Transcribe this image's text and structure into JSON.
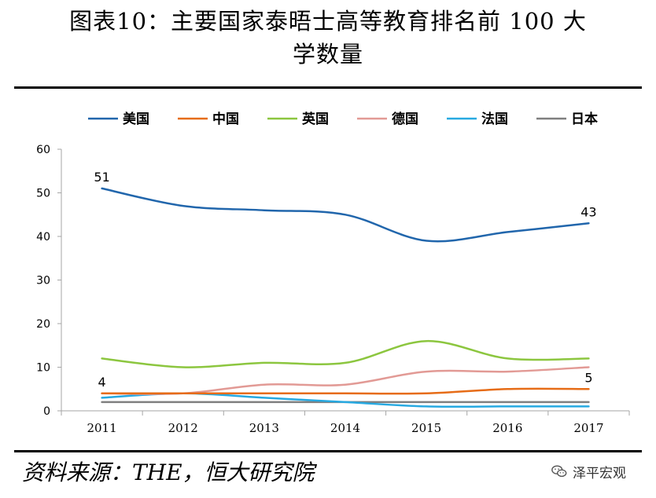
{
  "title": {
    "line1": "图表10：主要国家泰晤士高等教育排名前 100 大",
    "line2": "学数量"
  },
  "source": "资料来源：THE，恒大研究院",
  "watermark": {
    "text": "泽平宏观",
    "icon": "wechat-icon"
  },
  "chart_data": {
    "type": "line",
    "title": "主要国家泰晤士高等教育排名前 100 大学数量",
    "xlabel": "",
    "ylabel": "",
    "x": [
      "2011",
      "2012",
      "2013",
      "2014",
      "2015",
      "2016",
      "2017"
    ],
    "ylim": [
      0,
      60
    ],
    "yticks": [
      0,
      10,
      20,
      30,
      40,
      50,
      60
    ],
    "legend_position": "top",
    "series": [
      {
        "name": "美国",
        "color": "#2166ac",
        "values": [
          51,
          47,
          46,
          45,
          39,
          41,
          43
        ]
      },
      {
        "name": "中国",
        "color": "#e66c17",
        "values": [
          4,
          4,
          4,
          4,
          4,
          5,
          5
        ]
      },
      {
        "name": "英国",
        "color": "#8cc63f",
        "values": [
          12,
          10,
          11,
          11,
          16,
          12,
          12
        ]
      },
      {
        "name": "德国",
        "color": "#e29a95",
        "values": [
          4,
          4,
          6,
          6,
          9,
          9,
          10
        ]
      },
      {
        "name": "法国",
        "color": "#27a9e1",
        "values": [
          3,
          4,
          3,
          2,
          1,
          1,
          1
        ]
      },
      {
        "name": "日本",
        "color": "#7f7f7f",
        "values": [
          2,
          2,
          2,
          2,
          2,
          2,
          2
        ]
      }
    ],
    "annotations": [
      {
        "series": "美国",
        "x": "2011",
        "text": "51"
      },
      {
        "series": "美国",
        "x": "2017",
        "text": "43"
      },
      {
        "series": "中国",
        "x": "2011",
        "text": "4"
      },
      {
        "series": "中国",
        "x": "2017",
        "text": "5"
      }
    ]
  }
}
